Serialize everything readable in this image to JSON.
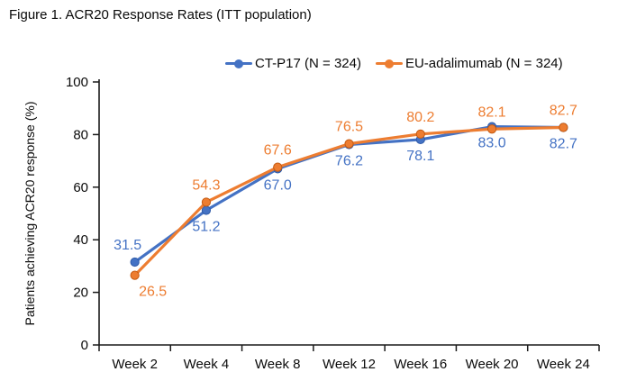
{
  "title": "Figure 1. ACR20 Response Rates (ITT population)",
  "chart_data": {
    "type": "line",
    "title": "Figure 1. ACR20 Response Rates (ITT population)",
    "categories": [
      "Week 2",
      "Week 4",
      "Week 8",
      "Week 12",
      "Week 16",
      "Week 20",
      "Week 24"
    ],
    "series": [
      {
        "id": "ct-p17",
        "name": "CT-P17 (N = 324)",
        "color": "#4472C4",
        "marker_edge": "#2E5AA8",
        "values": [
          31.5,
          51.2,
          67.0,
          76.2,
          78.1,
          83.0,
          82.7
        ],
        "label_side": [
          "above",
          "below",
          "below",
          "below",
          "below",
          "below",
          "below"
        ],
        "label_dx": [
          -8,
          0,
          0,
          0,
          0,
          0,
          0
        ]
      },
      {
        "id": "eu-adalimumab",
        "name": "EU-adalimumab (N = 324)",
        "color": "#ED7D31",
        "marker_edge": "#C55A11",
        "values": [
          26.5,
          54.3,
          67.6,
          76.5,
          80.2,
          82.1,
          82.7
        ],
        "label_side": [
          "below",
          "above",
          "above",
          "above",
          "above",
          "above",
          "above"
        ],
        "label_dx": [
          20,
          0,
          0,
          0,
          0,
          0,
          0
        ]
      }
    ],
    "xlabel": "",
    "ylabel": "Patients achieving ACR20 response (%)",
    "ylim": [
      0,
      100
    ],
    "yticks": [
      0,
      20,
      40,
      60,
      80,
      100
    ],
    "grid": false,
    "legend_position": "top",
    "axis_color": "#1a1a1a"
  }
}
